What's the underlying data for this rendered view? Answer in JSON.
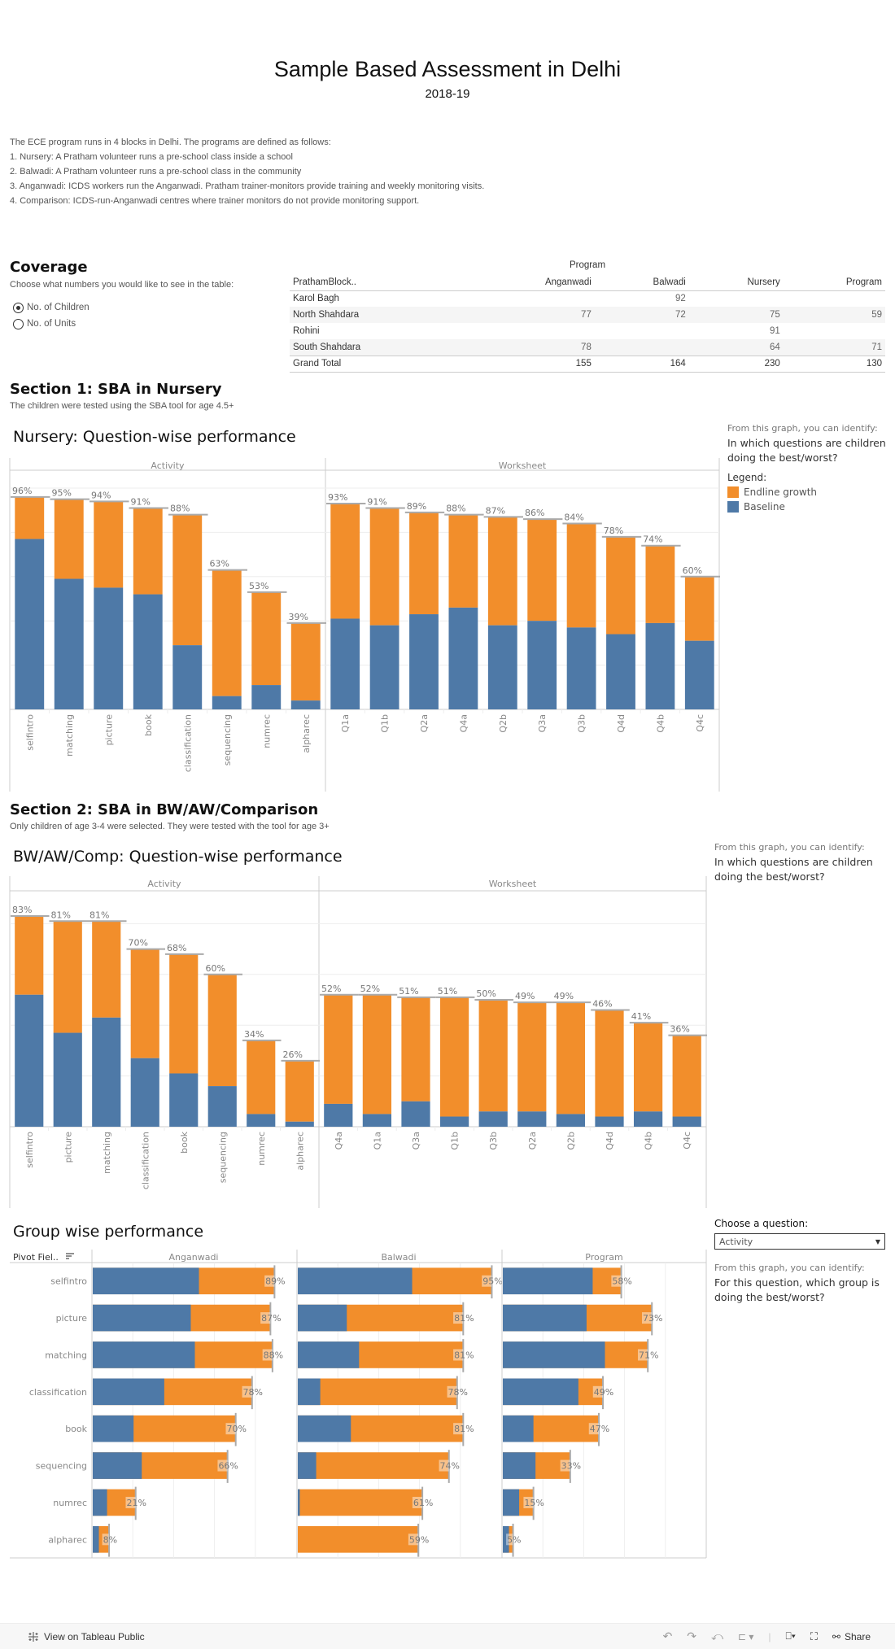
{
  "header": {
    "title": "Sample Based Assessment in Delhi",
    "subtitle": "2018-19"
  },
  "intro": [
    "The ECE program runs in 4 blocks in Delhi. The programs are defined as follows:",
    "1. Nursery: A Pratham volunteer runs a pre-school class inside a school",
    "2. Balwadi: A Pratham volunteer runs a pre-school class in the community",
    "3. Anganwadi: ICDS workers run the Anganwadi. Pratham trainer-monitors provide training and weekly monitoring visits.",
    "4. Comparison: ICDS-run-Anganwadi centres where trainer monitors do not provide monitoring support."
  ],
  "coverage": {
    "heading": "Coverage",
    "prompt": "Choose what numbers you would like to see in the table:",
    "options": [
      {
        "label": "No. of Children",
        "selected": true
      },
      {
        "label": "No. of Units",
        "selected": false
      }
    ],
    "table": {
      "group_header": "Program",
      "columns": [
        "PrathamBlock..",
        "Anganwadi",
        "Balwadi",
        "Nursery",
        "Program"
      ],
      "rows": [
        [
          "Karol Bagh",
          "",
          "92",
          "",
          ""
        ],
        [
          "North Shahdara",
          "77",
          "72",
          "75",
          "59"
        ],
        [
          "Rohini",
          "",
          "",
          "91",
          ""
        ],
        [
          "South Shahdara",
          "78",
          "",
          "64",
          "71"
        ]
      ],
      "total": [
        "Grand Total",
        "155",
        "164",
        "230",
        "130"
      ]
    }
  },
  "section1": {
    "heading": "Section 1: SBA in Nursery",
    "description": "The children were tested using the SBA tool for age 4.5+",
    "note_label": "From this graph, you can identify:",
    "note_text": "In which questions are children doing the best/worst?",
    "legend_title": "Legend:",
    "legend": [
      {
        "label": "Endline growth",
        "color": "#f28e2b"
      },
      {
        "label": "Baseline",
        "color": "#4e79a7"
      }
    ]
  },
  "section2": {
    "heading": "Section 2: SBA in BW/AW/Comparison",
    "description": "Only children of age 3-4 were selected. They were tested with the tool for  age 3+",
    "note_label": "From this graph, you can identify:",
    "note_text": "In which questions are children doing the best/worst?"
  },
  "group_controls": {
    "label": "Choose a question:",
    "selected": "Activity",
    "note_label": "From this graph, you can identify:",
    "note_text": "For this question, which group is doing the best/worst?"
  },
  "colors": {
    "baseline": "#4e79a7",
    "endline": "#f28e2b",
    "refline": "#aaaaaa",
    "grid": "#eeeeee",
    "border": "#cccccc"
  },
  "chart_data": [
    {
      "id": "nursery",
      "type": "bar",
      "stacked": true,
      "title": "Nursery: Question-wise performance",
      "ylim": [
        0,
        100
      ],
      "grid": true,
      "series_names": [
        "Baseline",
        "Endline growth"
      ],
      "panels": [
        {
          "name": "Activity",
          "categories": [
            "selfintro",
            "matching",
            "picture",
            "book",
            "classification",
            "sequencing",
            "numrec",
            "alpharec"
          ],
          "baseline": [
            77,
            59,
            55,
            52,
            29,
            6,
            11,
            4
          ],
          "endline": [
            96,
            95,
            94,
            91,
            88,
            63,
            53,
            39
          ],
          "labels": [
            "96%",
            "95%",
            "94%",
            "91%",
            "88%",
            "63%",
            "53%",
            "39%"
          ]
        },
        {
          "name": "Worksheet",
          "categories": [
            "Q1a",
            "Q1b",
            "Q2a",
            "Q4a",
            "Q2b",
            "Q3a",
            "Q3b",
            "Q4d",
            "Q4b",
            "Q4c"
          ],
          "baseline": [
            41,
            38,
            43,
            46,
            38,
            40,
            37,
            34,
            39,
            31
          ],
          "endline": [
            93,
            91,
            89,
            88,
            87,
            86,
            84,
            78,
            74,
            60
          ],
          "labels": [
            "93%",
            "91%",
            "89%",
            "88%",
            "87%",
            "86%",
            "84%",
            "78%",
            "74%",
            "60%"
          ]
        }
      ]
    },
    {
      "id": "bwawcomp",
      "type": "bar",
      "stacked": true,
      "title": "BW/AW/Comp: Question-wise performance",
      "ylim": [
        0,
        100
      ],
      "grid": true,
      "series_names": [
        "Baseline",
        "Endline growth"
      ],
      "panels": [
        {
          "name": "Activity",
          "categories": [
            "selfintro",
            "picture",
            "matching",
            "classification",
            "book",
            "sequencing",
            "numrec",
            "alpharec"
          ],
          "baseline": [
            52,
            37,
            43,
            27,
            21,
            16,
            5,
            2
          ],
          "endline": [
            83,
            81,
            81,
            70,
            68,
            60,
            34,
            26
          ],
          "labels": [
            "83%",
            "81%",
            "81%",
            "70%",
            "68%",
            "60%",
            "34%",
            "26%"
          ]
        },
        {
          "name": "Worksheet",
          "categories": [
            "Q4a",
            "Q1a",
            "Q3a",
            "Q1b",
            "Q3b",
            "Q2a",
            "Q2b",
            "Q4d",
            "Q4b",
            "Q4c"
          ],
          "baseline": [
            9,
            5,
            10,
            4,
            6,
            6,
            5,
            4,
            6,
            4
          ],
          "endline": [
            52,
            52,
            51,
            51,
            50,
            49,
            49,
            46,
            41,
            36
          ],
          "labels": [
            "52%",
            "52%",
            "51%",
            "51%",
            "50%",
            "49%",
            "49%",
            "46%",
            "41%",
            "36%"
          ]
        }
      ]
    },
    {
      "id": "groupwise",
      "type": "bar",
      "orientation": "horizontal",
      "stacked": true,
      "title": "Group wise performance",
      "row_header": "Pivot Fiel..",
      "xlim": [
        0,
        100
      ],
      "grid": true,
      "categories": [
        "selfintro",
        "picture",
        "matching",
        "classification",
        "book",
        "sequencing",
        "numrec",
        "alpharec"
      ],
      "panels": [
        {
          "name": "Anganwadi",
          "baseline": [
            52,
            48,
            50,
            35,
            20,
            24,
            7,
            3
          ],
          "endline": [
            89,
            87,
            88,
            78,
            70,
            66,
            21,
            8
          ],
          "labels": [
            "89%",
            "87%",
            "88%",
            "78%",
            "70%",
            "66%",
            "21%",
            "8%"
          ]
        },
        {
          "name": "Balwadi",
          "baseline": [
            56,
            24,
            30,
            11,
            26,
            9,
            1,
            0
          ],
          "endline": [
            95,
            81,
            81,
            78,
            81,
            74,
            61,
            59
          ],
          "labels": [
            "95%",
            "81%",
            "81%",
            "78%",
            "81%",
            "74%",
            "61%",
            "59%"
          ]
        },
        {
          "name": "Program",
          "baseline": [
            44,
            41,
            50,
            37,
            15,
            16,
            8,
            3
          ],
          "endline": [
            58,
            73,
            71,
            49,
            47,
            33,
            15,
            5
          ],
          "labels": [
            "58%",
            "73%",
            "71%",
            "49%",
            "47%",
            "33%",
            "15%",
            "5%"
          ]
        }
      ]
    }
  ],
  "footer": {
    "tableau_link": "View on Tableau Public",
    "share": "Share"
  }
}
